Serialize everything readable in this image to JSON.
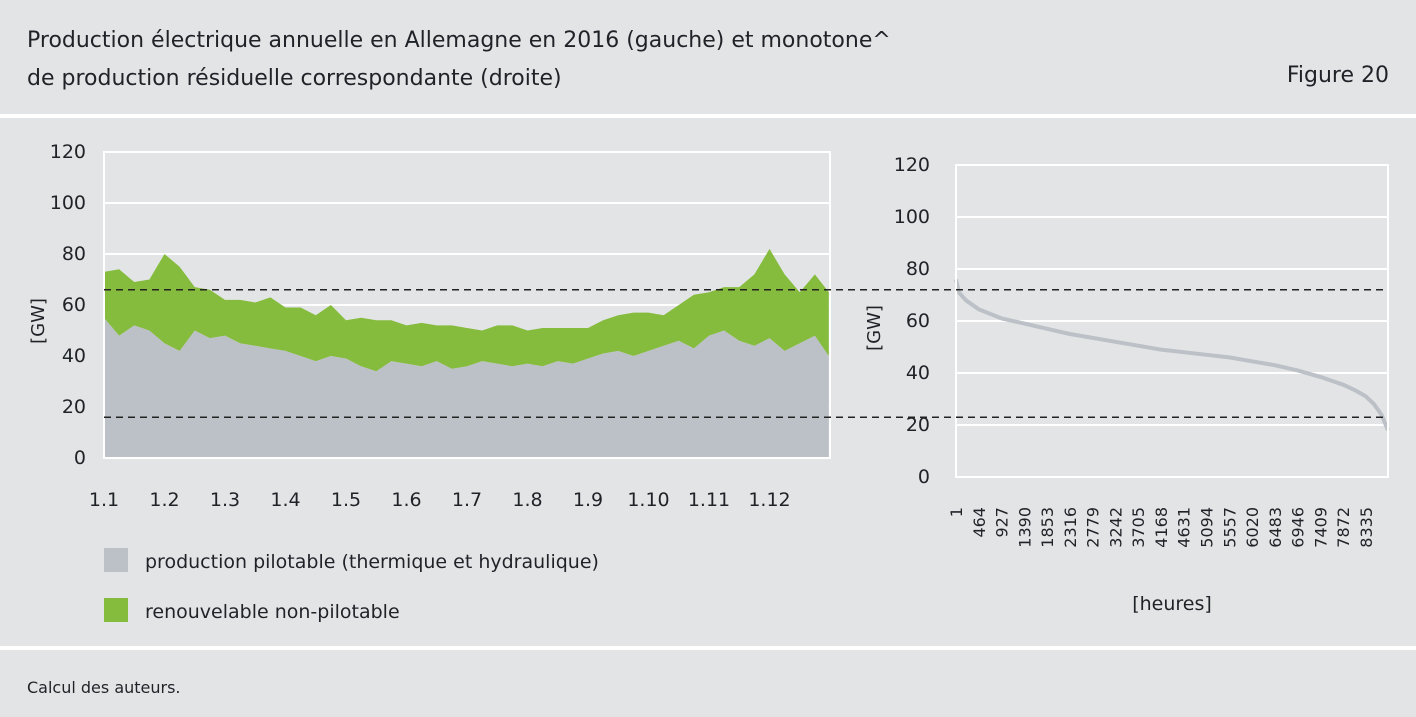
{
  "header": {
    "title": "Production électrique annuelle en Allemagne en 2016 (gauche) et monotone^\nde production résiduelle correspondante (droite)",
    "figure_label": "Figure 20"
  },
  "footer": {
    "note": "Calcul des auteurs."
  },
  "colors": {
    "background": "#e3e4e6",
    "grid": "#ffffff",
    "dispatchable": "#bcc1c7",
    "renewable": "#85bc3d",
    "duration_curve": "#bcc1c7",
    "reference_lines": "#222222"
  },
  "chart_data": [
    {
      "type": "area",
      "stacked": true,
      "ylabel": "[GW]",
      "ylim": [
        0,
        120
      ],
      "yticks": [
        "0",
        "20",
        "40",
        "60",
        "80",
        "100",
        "120"
      ],
      "xticks": [
        "1.1",
        "1.2",
        "1.3",
        "1.4",
        "1.5",
        "1.6",
        "1.7",
        "1.8",
        "1.9",
        "1.10",
        "1.11",
        "1.12"
      ],
      "grid": "horizontal",
      "reference_lines": [
        66,
        16
      ],
      "legend_position": "bottom-left",
      "legend": [
        "production pilotable (thermique et hydraulique)",
        "renouvelable non-pilotable"
      ],
      "series": [
        {
          "name": "production pilotable (thermique et hydraulique)",
          "x_month": [
            1.0,
            1.25,
            1.5,
            1.75,
            2.0,
            2.25,
            2.5,
            2.75,
            3.0,
            3.25,
            3.5,
            3.75,
            4.0,
            4.25,
            4.5,
            4.75,
            5.0,
            5.25,
            5.5,
            5.75,
            6.0,
            6.25,
            6.5,
            6.75,
            7.0,
            7.25,
            7.5,
            7.75,
            8.0,
            8.25,
            8.5,
            8.75,
            9.0,
            9.25,
            9.5,
            9.75,
            10.0,
            10.25,
            10.5,
            10.75,
            11.0,
            11.25,
            11.5,
            11.75,
            12.0,
            12.25,
            12.5,
            12.75,
            12.98
          ],
          "values": [
            55,
            48,
            52,
            50,
            45,
            42,
            50,
            47,
            48,
            45,
            44,
            43,
            42,
            40,
            38,
            40,
            39,
            36,
            34,
            38,
            37,
            36,
            38,
            35,
            36,
            38,
            37,
            36,
            37,
            36,
            38,
            37,
            39,
            41,
            42,
            40,
            42,
            44,
            46,
            43,
            48,
            50,
            46,
            44,
            47,
            42,
            45,
            48,
            40
          ]
        },
        {
          "name": "renouvelable non-pilotable",
          "x_month": [
            1.0,
            1.25,
            1.5,
            1.75,
            2.0,
            2.25,
            2.5,
            2.75,
            3.0,
            3.25,
            3.5,
            3.75,
            4.0,
            4.25,
            4.5,
            4.75,
            5.0,
            5.25,
            5.5,
            5.75,
            6.0,
            6.25,
            6.5,
            6.75,
            7.0,
            7.25,
            7.5,
            7.75,
            8.0,
            8.25,
            8.5,
            8.75,
            9.0,
            9.25,
            9.5,
            9.75,
            10.0,
            10.25,
            10.5,
            10.75,
            11.0,
            11.25,
            11.5,
            11.75,
            12.0,
            12.25,
            12.5,
            12.75,
            12.98
          ],
          "values": [
            18,
            26,
            17,
            20,
            35,
            33,
            17,
            19,
            14,
            17,
            17,
            20,
            17,
            19,
            18,
            20,
            15,
            19,
            20,
            16,
            15,
            17,
            14,
            17,
            15,
            12,
            15,
            16,
            13,
            15,
            13,
            14,
            12,
            13,
            14,
            17,
            15,
            12,
            14,
            21,
            17,
            17,
            21,
            28,
            35,
            30,
            20,
            24,
            25
          ]
        }
      ]
    },
    {
      "type": "line",
      "ylabel": "[GW]",
      "xlabel": "[heures]",
      "ylim": [
        0,
        120
      ],
      "yticks": [
        "0",
        "20",
        "40",
        "60",
        "80",
        "100",
        "120"
      ],
      "xticks": [
        "1",
        "464",
        "927",
        "1390",
        "1853",
        "2316",
        "2779",
        "3242",
        "3705",
        "4168",
        "4631",
        "5094",
        "5557",
        "6020",
        "6483",
        "6946",
        "7409",
        "7872",
        "8335"
      ],
      "xlim": [
        1,
        8784
      ],
      "grid": "horizontal",
      "reference_lines": [
        72,
        23
      ],
      "series": [
        {
          "name": "",
          "x": [
            1,
            60,
            200,
            464,
            927,
            1390,
            1853,
            2316,
            2779,
            3242,
            3705,
            4168,
            4631,
            5094,
            5557,
            6020,
            6483,
            6946,
            7409,
            7872,
            8100,
            8335,
            8500,
            8650,
            8784
          ],
          "y": [
            76,
            71,
            68,
            64.5,
            61,
            59,
            57,
            55,
            53.5,
            52,
            50.5,
            49,
            48,
            47,
            46,
            44.5,
            43,
            41,
            38.5,
            35.5,
            33.5,
            31,
            28,
            24,
            18
          ]
        }
      ]
    }
  ]
}
